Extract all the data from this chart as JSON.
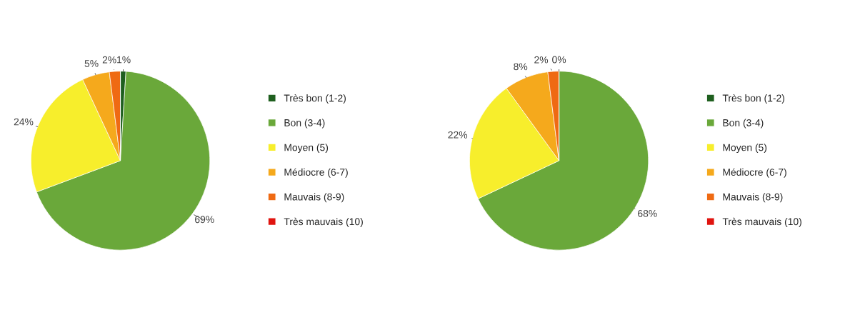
{
  "chart_data": [
    {
      "type": "pie",
      "categories": [
        "Très bon (1-2)",
        "Bon (3-4)",
        "Moyen (5)",
        "Médiocre (6-7)",
        "Mauvais (8-9)",
        "Très mauvais (10)"
      ],
      "values": [
        1,
        69,
        24,
        5,
        2,
        0
      ],
      "value_labels": [
        "1%",
        "69%",
        "24%",
        "5%",
        "2%",
        null
      ],
      "colors": [
        "#1f5f1f",
        "#6aa83a",
        "#f7ee2c",
        "#f5a91c",
        "#ef6a13",
        "#e0140f"
      ],
      "legend": "right"
    },
    {
      "type": "pie",
      "categories": [
        "Très bon (1-2)",
        "Bon (3-4)",
        "Moyen (5)",
        "Médiocre (6-7)",
        "Mauvais (8-9)",
        "Très mauvais (10)"
      ],
      "values": [
        0,
        68,
        22,
        8,
        2,
        0
      ],
      "value_labels": [
        "0%",
        "68%",
        "22%",
        "8%",
        "2%",
        null
      ],
      "colors": [
        "#1f5f1f",
        "#6aa83a",
        "#f7ee2c",
        "#f5a91c",
        "#ef6a13",
        "#e0140f"
      ],
      "legend": "right"
    }
  ]
}
